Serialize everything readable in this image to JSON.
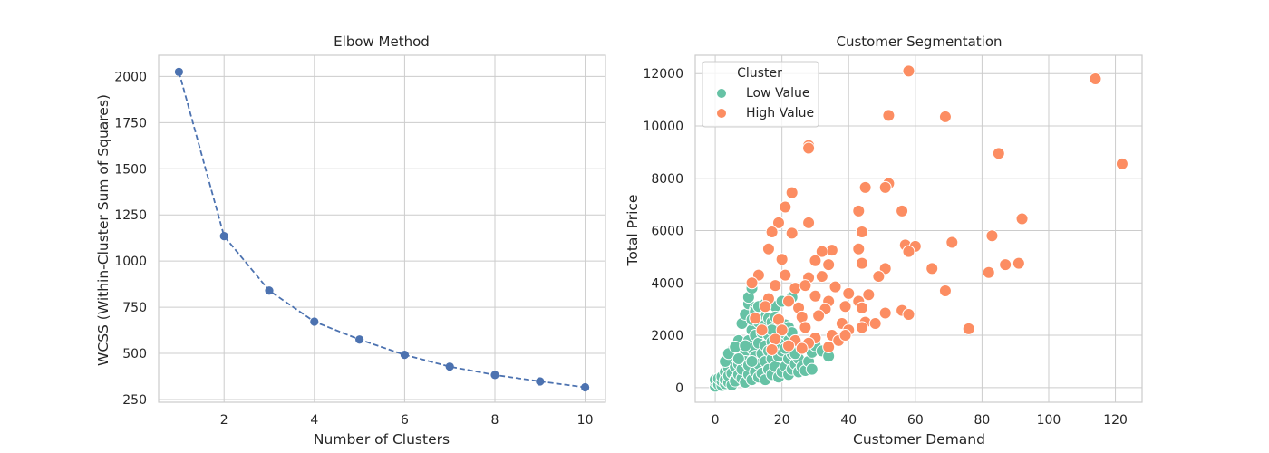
{
  "chart_data": [
    {
      "type": "line",
      "title": "Elbow Method",
      "xlabel": "Number of Clusters",
      "ylabel": "WCSS (Within-Cluster Sum of Squares)",
      "x": [
        1,
        2,
        3,
        4,
        5,
        6,
        7,
        8,
        9,
        10
      ],
      "series": [
        {
          "values": [
            2025,
            1135,
            840,
            672,
            575,
            492,
            428,
            383,
            348,
            316
          ]
        }
      ],
      "xlim": [
        0.55,
        10.45
      ],
      "ylim": [
        235,
        2115
      ],
      "xticks": [
        2,
        4,
        6,
        8,
        10
      ],
      "yticks": [
        250,
        500,
        750,
        1000,
        1250,
        1500,
        1750,
        2000
      ],
      "line_style": "dashed",
      "marker": "circle",
      "color": "#4c72b0",
      "grid": true
    },
    {
      "type": "scatter",
      "title": "Customer Segmentation",
      "xlabel": "Customer Demand",
      "ylabel": "Total Price",
      "xlim": [
        -6,
        128
      ],
      "ylim": [
        -560,
        12700
      ],
      "xticks": [
        0,
        20,
        40,
        60,
        80,
        100,
        120
      ],
      "yticks": [
        0,
        2000,
        4000,
        6000,
        8000,
        10000,
        12000
      ],
      "grid": true,
      "legend": {
        "title": "Cluster",
        "position": "top-left"
      },
      "series": [
        {
          "name": "Low Value",
          "color": "#66c2a5",
          "points": [
            [
              0,
              50
            ],
            [
              0,
              220
            ],
            [
              0,
              300
            ],
            [
              1,
              120
            ],
            [
              1,
              350
            ],
            [
              2,
              80
            ],
            [
              2,
              250
            ],
            [
              2,
              420
            ],
            [
              3,
              150
            ],
            [
              3,
              600
            ],
            [
              3,
              300
            ],
            [
              4,
              200
            ],
            [
              4,
              750
            ],
            [
              4,
              450
            ],
            [
              5,
              100
            ],
            [
              5,
              550
            ],
            [
              5,
              1000
            ],
            [
              5,
              1400
            ],
            [
              6,
              300
            ],
            [
              6,
              800
            ],
            [
              6,
              1200
            ],
            [
              6,
              250
            ],
            [
              7,
              500
            ],
            [
              7,
              1650
            ],
            [
              7,
              1800
            ],
            [
              7,
              900
            ],
            [
              8,
              350
            ],
            [
              8,
              1100
            ],
            [
              8,
              2450
            ],
            [
              8,
              700
            ],
            [
              9,
              200
            ],
            [
              9,
              1400
            ],
            [
              9,
              2800
            ],
            [
              9,
              1000
            ],
            [
              10,
              500
            ],
            [
              10,
              1800
            ],
            [
              10,
              3200
            ],
            [
              10,
              3450
            ],
            [
              10,
              850
            ],
            [
              11,
              300
            ],
            [
              11,
              1500
            ],
            [
              11,
              2200
            ],
            [
              11,
              2600
            ],
            [
              11,
              3800
            ],
            [
              12,
              600
            ],
            [
              12,
              1200
            ],
            [
              12,
              2000
            ],
            [
              12,
              3000
            ],
            [
              13,
              400
            ],
            [
              13,
              900
            ],
            [
              13,
              1700
            ],
            [
              13,
              2500
            ],
            [
              14,
              550
            ],
            [
              14,
              1300
            ],
            [
              14,
              2100
            ],
            [
              14,
              2700
            ],
            [
              15,
              300
            ],
            [
              15,
              1000
            ],
            [
              15,
              1600
            ],
            [
              15,
              2400
            ],
            [
              16,
              700
            ],
            [
              16,
              1400
            ],
            [
              16,
              2000
            ],
            [
              16,
              2650
            ],
            [
              17,
              500
            ],
            [
              17,
              1100
            ],
            [
              17,
              1750
            ],
            [
              17,
              2500
            ],
            [
              18,
              800
            ],
            [
              18,
              1600
            ],
            [
              18,
              3100
            ],
            [
              19,
              400
            ],
            [
              19,
              1200
            ],
            [
              19,
              2200
            ],
            [
              20,
              600
            ],
            [
              20,
              1400
            ],
            [
              20,
              1900
            ],
            [
              20,
              3300
            ],
            [
              21,
              800
            ],
            [
              21,
              2400
            ],
            [
              22,
              500
            ],
            [
              22,
              1100
            ],
            [
              22,
              1800
            ],
            [
              22,
              2300
            ],
            [
              23,
              700
            ],
            [
              23,
              1300
            ],
            [
              23,
              3450
            ],
            [
              24,
              900
            ],
            [
              24,
              1600
            ],
            [
              25,
              600
            ],
            [
              25,
              1100
            ],
            [
              26,
              800
            ],
            [
              27,
              650
            ],
            [
              28,
              1000
            ],
            [
              29,
              700
            ],
            [
              29,
              1350
            ],
            [
              30,
              1600
            ],
            [
              32,
              1400
            ],
            [
              34,
              1200
            ],
            [
              3,
              1000
            ],
            [
              4,
              1300
            ],
            [
              6,
              1550
            ],
            [
              7,
              1100
            ],
            [
              9,
              1600
            ],
            [
              11,
              1000
            ],
            [
              12,
              2900
            ],
            [
              13,
              3100
            ],
            [
              15,
              3200
            ],
            [
              17,
              2200
            ],
            [
              18,
              2700
            ],
            [
              19,
              1700
            ],
            [
              21,
              1500
            ],
            [
              23,
              2100
            ],
            [
              24,
              1300
            ],
            [
              26,
              1500
            ]
          ]
        },
        {
          "name": "High Value",
          "color": "#fc8d62",
          "points": [
            [
              58,
              12100
            ],
            [
              114,
              11800
            ],
            [
              52,
              10400
            ],
            [
              69,
              10350
            ],
            [
              28,
              9250
            ],
            [
              28,
              9150
            ],
            [
              85,
              8950
            ],
            [
              122,
              8550
            ],
            [
              52,
              7800
            ],
            [
              51,
              7650
            ],
            [
              45,
              7650
            ],
            [
              23,
              7450
            ],
            [
              21,
              6900
            ],
            [
              43,
              6750
            ],
            [
              56,
              6750
            ],
            [
              92,
              6450
            ],
            [
              19,
              6300
            ],
            [
              28,
              6300
            ],
            [
              17,
              5950
            ],
            [
              23,
              5900
            ],
            [
              44,
              5950
            ],
            [
              71,
              5550
            ],
            [
              83,
              5800
            ],
            [
              57,
              5450
            ],
            [
              60,
              5400
            ],
            [
              16,
              5300
            ],
            [
              35,
              5250
            ],
            [
              32,
              5200
            ],
            [
              43,
              5300
            ],
            [
              58,
              5200
            ],
            [
              20,
              4900
            ],
            [
              30,
              4850
            ],
            [
              34,
              4700
            ],
            [
              44,
              4750
            ],
            [
              51,
              4550
            ],
            [
              65,
              4550
            ],
            [
              87,
              4700
            ],
            [
              91,
              4750
            ],
            [
              82,
              4400
            ],
            [
              13,
              4300
            ],
            [
              21,
              4300
            ],
            [
              28,
              4200
            ],
            [
              32,
              4250
            ],
            [
              49,
              4250
            ],
            [
              11,
              4000
            ],
            [
              18,
              3900
            ],
            [
              24,
              3800
            ],
            [
              27,
              3900
            ],
            [
              36,
              3850
            ],
            [
              40,
              3600
            ],
            [
              46,
              3550
            ],
            [
              69,
              3700
            ],
            [
              16,
              3400
            ],
            [
              22,
              3300
            ],
            [
              30,
              3500
            ],
            [
              34,
              3300
            ],
            [
              43,
              3300
            ],
            [
              15,
              3100
            ],
            [
              25,
              3050
            ],
            [
              33,
              3000
            ],
            [
              39,
              3100
            ],
            [
              44,
              3050
            ],
            [
              56,
              2950
            ],
            [
              58,
              2800
            ],
            [
              51,
              2850
            ],
            [
              12,
              2650
            ],
            [
              19,
              2600
            ],
            [
              26,
              2700
            ],
            [
              31,
              2750
            ],
            [
              38,
              2450
            ],
            [
              45,
              2500
            ],
            [
              48,
              2450
            ],
            [
              76,
              2250
            ],
            [
              14,
              2200
            ],
            [
              20,
              2200
            ],
            [
              27,
              2300
            ],
            [
              35,
              2000
            ],
            [
              40,
              2200
            ],
            [
              44,
              2300
            ],
            [
              18,
              1850
            ],
            [
              24,
              1800
            ],
            [
              30,
              1900
            ],
            [
              37,
              1800
            ],
            [
              39,
              2000
            ],
            [
              22,
              1600
            ],
            [
              28,
              1700
            ],
            [
              34,
              1550
            ],
            [
              17,
              1450
            ],
            [
              26,
              1500
            ]
          ]
        }
      ]
    }
  ]
}
